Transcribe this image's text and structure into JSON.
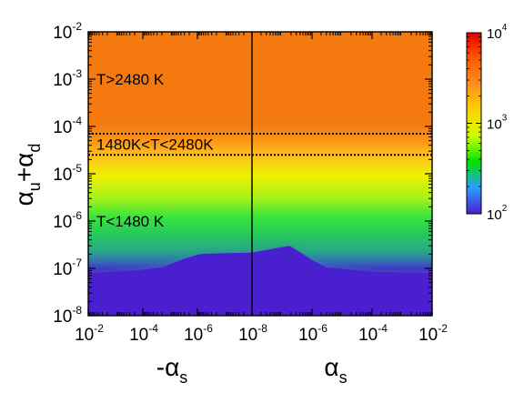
{
  "chart_data": {
    "type": "heatmap",
    "title": "",
    "panels": [
      {
        "xlabel": {
          "prefix": "-",
          "base": "α",
          "sub": "s"
        },
        "x_scale": "log",
        "x_direction": "decreasing",
        "xlim": [
          0.01,
          1e-08
        ],
        "x_ticks": [
          {
            "base": "10",
            "exp": "-2",
            "value": 0.01
          },
          {
            "base": "10",
            "exp": "-4",
            "value": 0.0001
          },
          {
            "base": "10",
            "exp": "-6",
            "value": 1e-06
          }
        ]
      },
      {
        "xlabel": {
          "prefix": "",
          "base": "α",
          "sub": "s"
        },
        "x_scale": "log",
        "x_direction": "increasing",
        "xlim": [
          1e-08,
          0.01
        ],
        "x_ticks": [
          {
            "base": "10",
            "exp": "-8",
            "value": 1e-08
          },
          {
            "base": "10",
            "exp": "-6",
            "value": 1e-06
          },
          {
            "base": "10",
            "exp": "-4",
            "value": 0.0001
          },
          {
            "base": "10",
            "exp": "-2",
            "value": 0.01
          }
        ]
      }
    ],
    "ylabel": {
      "base1": "α",
      "sub1": "u",
      "plus": "+",
      "base2": "α",
      "sub2": "d"
    },
    "y_scale": "log",
    "ylim": [
      1e-08,
      0.01
    ],
    "y_ticks": [
      {
        "base": "10",
        "exp": "-2",
        "value": 0.01
      },
      {
        "base": "10",
        "exp": "-3",
        "value": 0.001
      },
      {
        "base": "10",
        "exp": "-4",
        "value": 0.0001
      },
      {
        "base": "10",
        "exp": "-5",
        "value": 1e-05
      },
      {
        "base": "10",
        "exp": "-6",
        "value": 1e-06
      },
      {
        "base": "10",
        "exp": "-7",
        "value": 1e-07
      },
      {
        "base": "10",
        "exp": "-8",
        "value": 1e-08
      }
    ],
    "colorbar": {
      "scale": "log",
      "range": [
        100,
        10000
      ],
      "ticks": [
        {
          "base": "10",
          "exp": "4",
          "value": 10000
        },
        {
          "base": "10",
          "exp": "3",
          "value": 1000
        },
        {
          "base": "10",
          "exp": "2",
          "value": 100
        }
      ],
      "colors": [
        "#4a1fd0",
        "#2a9fff",
        "#00e000",
        "#ccff00",
        "#ffd200",
        "#ff9020",
        "#ff5a00",
        "#e00000"
      ]
    },
    "regions": [
      {
        "label": "T>2480 K",
        "y_min": 7e-05,
        "y_max": 0.01,
        "color": "#f47a10"
      },
      {
        "label": "1480K<T<2480K",
        "y_min": 2.5e-05,
        "y_max": 7e-05,
        "color": "#fb9a18"
      },
      {
        "label": "T<1480 K",
        "y_min": 1e-08,
        "y_max": 2.5e-05,
        "color": "#00e000"
      }
    ],
    "boundary_lines": [
      {
        "y": 7e-05,
        "style": "dotted"
      },
      {
        "y": 2.5e-05,
        "style": "dotted"
      }
    ],
    "vertical_gradient": [
      {
        "y": 0.01,
        "color": "#f47a10"
      },
      {
        "y": 0.00011,
        "color": "#f47a10"
      },
      {
        "y": 5.5e-05,
        "color": "#fc9116"
      },
      {
        "y": 2.5e-05,
        "color": "#ffbf1d"
      },
      {
        "y": 9e-06,
        "color": "#eef000"
      },
      {
        "y": 3e-06,
        "color": "#a5f21c"
      },
      {
        "y": 1.2e-06,
        "color": "#37e43c"
      },
      {
        "y": 5e-07,
        "color": "#25c85e"
      },
      {
        "y": 2.2e-07,
        "color": "#2aa58a"
      },
      {
        "y": 1.3e-07,
        "color": "#3565ba"
      },
      {
        "y": 9e-08,
        "color": "#4a1fd0"
      },
      {
        "y": 1e-08,
        "color": "#4a1fd0"
      }
    ],
    "low_temperature_boundary": [
      {
        "x": 0.01,
        "y": 8e-08
      },
      {
        "x": 0.0002,
        "y": 9e-08
      },
      {
        "x": 2e-05,
        "y": 1.05e-07
      },
      {
        "x": 3e-06,
        "y": 1.6e-07
      },
      {
        "x": 8e-07,
        "y": 2e-07
      },
      {
        "x": 1e-07,
        "y": 2.1e-07
      },
      {
        "x": 1e-08,
        "y": 2.15e-07
      },
      {
        "x": 1e-08,
        "y": 2.15e-07
      },
      {
        "x": 5e-08,
        "y": 2.6e-07
      },
      {
        "x": 1.8e-07,
        "y": 3e-07
      },
      {
        "x": 4e-07,
        "y": 2.2e-07
      },
      {
        "x": 1e-06,
        "y": 1.5e-07
      },
      {
        "x": 3e-06,
        "y": 1.05e-07
      },
      {
        "x": 0.0001,
        "y": 8.5e-08
      },
      {
        "x": 0.01,
        "y": 8e-08
      }
    ]
  }
}
